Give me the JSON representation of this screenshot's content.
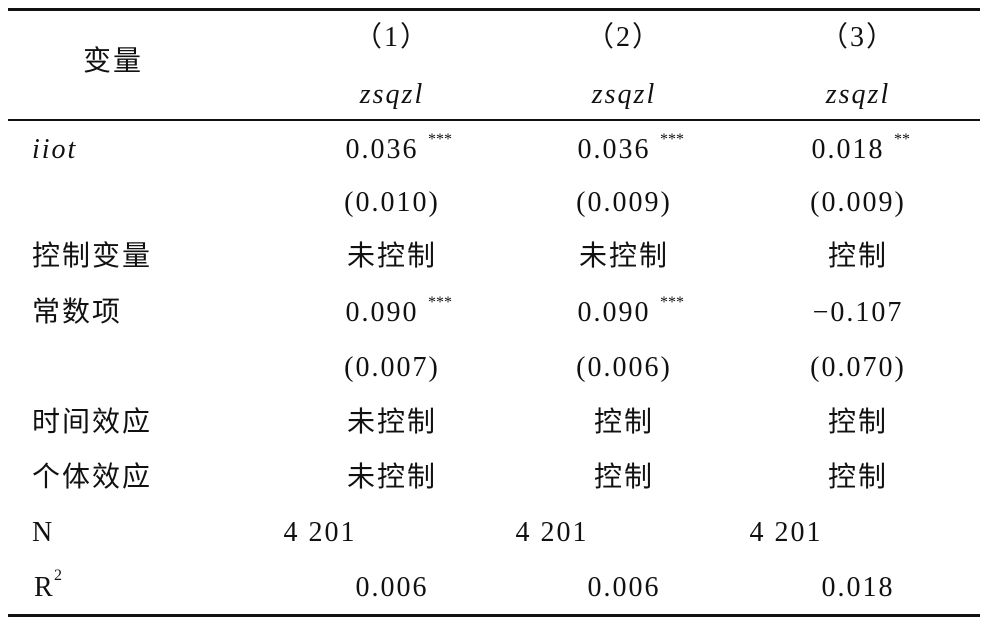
{
  "header": {
    "variable": "变量",
    "columns": [
      {
        "number": "（1）",
        "dep": "zsqzl"
      },
      {
        "number": "（2）",
        "dep": "zsqzl"
      },
      {
        "number": "（3）",
        "dep": "zsqzl"
      }
    ]
  },
  "rows": [
    {
      "label": "iiot",
      "cells": [
        {
          "value": "0.036",
          "stars": "***"
        },
        {
          "value": "0.036",
          "stars": "***"
        },
        {
          "value": "0.018",
          "stars": "**"
        }
      ]
    },
    {
      "cells": [
        "(0.010)",
        "(0.009)",
        "(0.009)"
      ]
    },
    {
      "label": "控制变量",
      "cells": [
        "未控制",
        "未控制",
        "控制"
      ]
    },
    {
      "label": "常数项",
      "cells": [
        {
          "value": "0.090",
          "stars": "***"
        },
        {
          "value": "0.090",
          "stars": "***"
        },
        "−0.107"
      ]
    },
    {
      "cells": [
        "(0.007)",
        "(0.006)",
        "(0.070)"
      ]
    },
    {
      "label": "时间效应",
      "cells": [
        "未控制",
        "控制",
        "控制"
      ]
    },
    {
      "label": "个体效应",
      "cells": [
        "未控制",
        "控制",
        "控制"
      ]
    },
    {
      "label": "N",
      "cells": [
        "4 201",
        "4 201",
        "4 201"
      ]
    },
    {
      "label": {
        "text": "R",
        "sup": "2"
      },
      "cells": [
        "0.006",
        "0.006",
        "0.018"
      ]
    }
  ]
}
